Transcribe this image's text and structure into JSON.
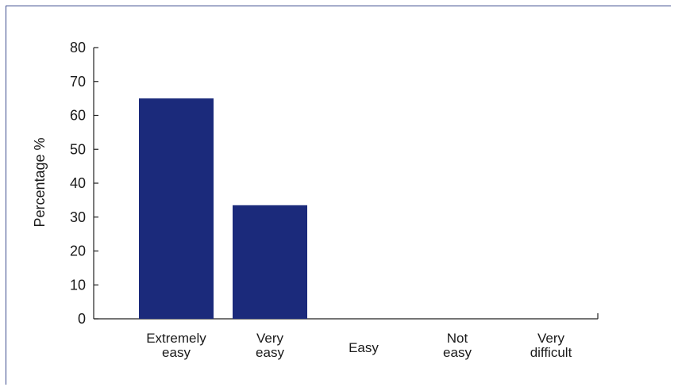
{
  "chart_data": {
    "type": "bar",
    "categories": [
      [
        "Extremely",
        "easy"
      ],
      [
        "Very",
        "easy"
      ],
      [
        "Easy"
      ],
      [
        "Not",
        "easy"
      ],
      [
        "Very",
        "difficult"
      ]
    ],
    "values": [
      65,
      33.5,
      0,
      0,
      0
    ],
    "title": "",
    "xlabel": "",
    "ylabel": "Percentage %",
    "ylim": [
      0,
      80
    ],
    "yticks": [
      0,
      10,
      20,
      30,
      40,
      50,
      60,
      70,
      80
    ],
    "grid": false,
    "legend": "none",
    "bar_color": "#1b2a7b",
    "axis_color": "#222222",
    "frame_color": "#3b4a8c"
  }
}
